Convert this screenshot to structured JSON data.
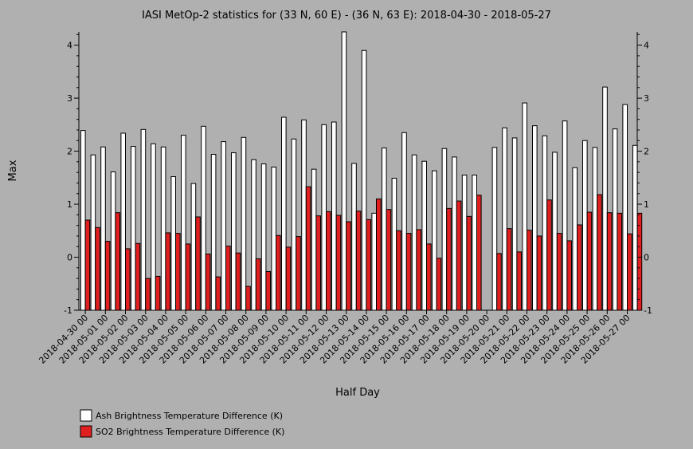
{
  "chart_data": {
    "type": "bar",
    "title": "IASI MetOp-2 statistics for (33 N, 60 E) - (36 N, 63 E): 2018-04-30 - 2018-05-27",
    "xlabel": "Half Day",
    "ylabel": "Max",
    "ylim": [
      -1,
      4.25
    ],
    "yticks": [
      -1,
      0,
      1,
      2,
      3,
      4
    ],
    "grid": false,
    "legend_position": "bottom-left",
    "categories": [
      "2018-04-30 00",
      "2018-04-30 12",
      "2018-05-01 00",
      "2018-05-01 12",
      "2018-05-02 00",
      "2018-05-02 12",
      "2018-05-03 00",
      "2018-05-03 12",
      "2018-05-04 00",
      "2018-05-04 12",
      "2018-05-05 00",
      "2018-05-05 12",
      "2018-05-06 00",
      "2018-05-06 12",
      "2018-05-07 00",
      "2018-05-07 12",
      "2018-05-08 00",
      "2018-05-08 12",
      "2018-05-09 00",
      "2018-05-09 12",
      "2018-05-10 00",
      "2018-05-10 12",
      "2018-05-11 00",
      "2018-05-11 12",
      "2018-05-12 00",
      "2018-05-12 12",
      "2018-05-13 00",
      "2018-05-13 12",
      "2018-05-14 00",
      "2018-05-14 12",
      "2018-05-15 00",
      "2018-05-15 12",
      "2018-05-16 00",
      "2018-05-16 12",
      "2018-05-17 00",
      "2018-05-17 12",
      "2018-05-18 00",
      "2018-05-18 12",
      "2018-05-19 00",
      "2018-05-19 12",
      "2018-05-20 00",
      "2018-05-20 12",
      "2018-05-21 00",
      "2018-05-21 12",
      "2018-05-22 00",
      "2018-05-22 12",
      "2018-05-23 00",
      "2018-05-23 12",
      "2018-05-24 00",
      "2018-05-24 12",
      "2018-05-25 00",
      "2018-05-25 12",
      "2018-05-26 00",
      "2018-05-26 12",
      "2018-05-27 00",
      "2018-05-27 12"
    ],
    "tick_labels": [
      "2018-04-30 00",
      "2018-05-01 00",
      "2018-05-02 00",
      "2018-05-03 00",
      "2018-05-04 00",
      "2018-05-05 00",
      "2018-05-06 00",
      "2018-05-07 00",
      "2018-05-08 00",
      "2018-05-09 00",
      "2018-05-10 00",
      "2018-05-11 00",
      "2018-05-12 00",
      "2018-05-13 00",
      "2018-05-14 00",
      "2018-05-15 00",
      "2018-05-16 00",
      "2018-05-17 00",
      "2018-05-18 00",
      "2018-05-19 00",
      "2018-05-20 00",
      "2018-05-21 00",
      "2018-05-22 00",
      "2018-05-23 00",
      "2018-05-24 00",
      "2018-05-25 00",
      "2018-05-26 00",
      "2018-05-27 00"
    ],
    "series": [
      {
        "name": "Ash Brightness Temperature Difference (K)",
        "color": "#ffffff",
        "values": [
          2.39,
          1.93,
          2.08,
          1.61,
          2.34,
          2.09,
          2.41,
          2.14,
          2.08,
          1.52,
          2.3,
          1.39,
          2.47,
          1.94,
          2.18,
          1.97,
          2.26,
          1.84,
          1.76,
          1.7,
          2.64,
          2.23,
          2.59,
          1.66,
          2.5,
          2.55,
          4.25,
          1.77,
          3.9,
          0.83,
          2.06,
          1.49,
          2.35,
          1.93,
          1.81,
          1.63,
          2.05,
          1.89,
          1.55,
          1.55,
          null,
          2.07,
          2.44,
          2.25,
          2.91,
          2.48,
          2.29,
          1.98,
          2.57,
          1.69,
          2.2,
          2.07,
          3.21,
          2.42,
          2.88,
          2.11
        ]
      },
      {
        "name": "SO2 Brightness Temperature Difference (K)",
        "color": "#e02020",
        "values": [
          0.7,
          0.56,
          0.3,
          0.84,
          0.16,
          0.26,
          -0.4,
          -0.36,
          0.46,
          0.45,
          0.25,
          0.76,
          0.06,
          -0.37,
          0.21,
          0.08,
          -0.55,
          -0.03,
          -0.27,
          0.41,
          0.19,
          0.39,
          1.33,
          0.78,
          0.86,
          0.79,
          0.67,
          0.87,
          0.71,
          1.1,
          0.9,
          0.5,
          0.45,
          0.52,
          0.25,
          -0.02,
          0.92,
          1.06,
          0.77,
          1.17,
          null,
          0.07,
          0.54,
          0.1,
          0.51,
          0.4,
          1.08,
          0.45,
          0.31,
          0.61,
          0.85,
          1.18,
          0.84,
          0.83,
          0.44,
          0.83
        ]
      }
    ]
  }
}
